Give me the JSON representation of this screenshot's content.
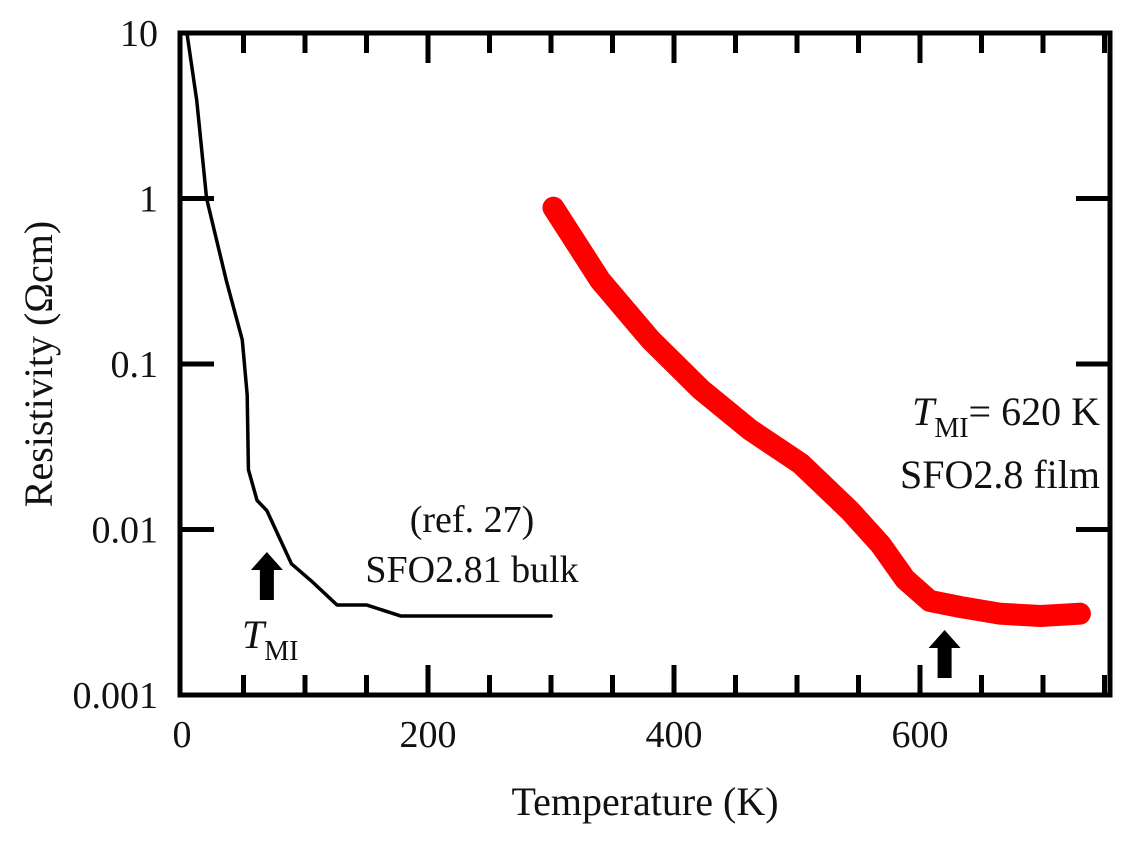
{
  "chart_data": {
    "type": "line",
    "title": "",
    "xlabel": "Temperature (K)",
    "ylabel": "Resistivity (Ωcm)",
    "xlim": [
      0,
      755
    ],
    "ylim": [
      0.001,
      10
    ],
    "yscale": "log",
    "grid": false,
    "x_ticks": [
      0,
      200,
      400,
      600
    ],
    "x_tick_labels": [
      "0",
      "200",
      "400",
      "600"
    ],
    "y_ticks": [
      10,
      1,
      0.1,
      0.01,
      0.001
    ],
    "y_tick_labels": [
      "10",
      "1",
      "0.1",
      "0.01",
      "0.001"
    ],
    "series": [
      {
        "name": "SFO2.81 bulk (ref. 27)",
        "color": "#000000",
        "x": [
          4,
          12,
          20,
          36,
          49,
          53,
          54,
          61,
          69,
          89,
          105,
          126,
          150,
          178,
          300
        ],
        "y": [
          10,
          3.9,
          1.0,
          0.32,
          0.14,
          0.065,
          0.023,
          0.015,
          0.013,
          0.0062,
          0.0049,
          0.0035,
          0.0035,
          0.003,
          0.003
        ]
      },
      {
        "name": "SFO2.8 film",
        "color": "#ff0000",
        "x": [
          302,
          340,
          381,
          422,
          462,
          503,
          543,
          568,
          588,
          608,
          633,
          665,
          698,
          730
        ],
        "y": [
          0.88,
          0.32,
          0.14,
          0.07,
          0.04,
          0.025,
          0.013,
          0.0081,
          0.005,
          0.0037,
          0.0034,
          0.0031,
          0.003,
          0.0031
        ]
      }
    ],
    "annotations": {
      "bulk_ref": "(ref. 27)",
      "bulk_label": "SFO2.81 bulk",
      "bulk_tmi_T": "T",
      "bulk_tmi_sub": "MI",
      "bulk_tmi_arrow_x": 69,
      "film_tmi_T": "T",
      "film_tmi_sub": "MI",
      "film_tmi_value": "= 620 K",
      "film_label": "SFO2.8 film",
      "film_tmi_arrow_x": 620
    }
  }
}
